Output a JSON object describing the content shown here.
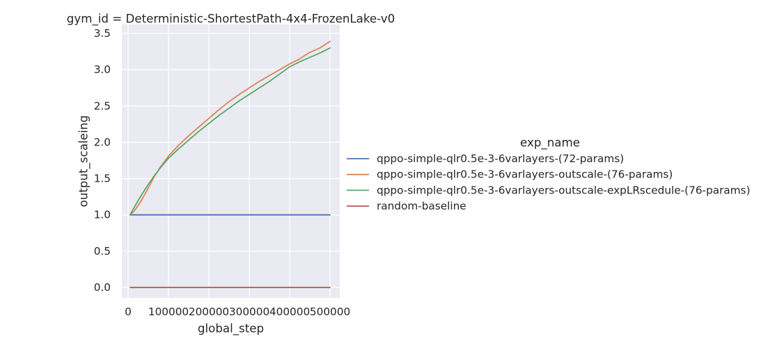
{
  "chart_data": {
    "type": "line",
    "title": "gym_id = Deterministic-ShortestPath-4x4-FrozenLake-v0",
    "xlabel": "global_step",
    "ylabel": "output_scaleing",
    "xlim": [
      -15500,
      524000
    ],
    "ylim": [
      -0.144,
      3.625
    ],
    "xticks": [
      0,
      100000,
      200000,
      300000,
      400000,
      500000
    ],
    "xtick_labels": [
      "0",
      "100000",
      "200000",
      "300000",
      "400000",
      "500000"
    ],
    "yticks": [
      0,
      0.5,
      1,
      1.5,
      2,
      2.5,
      3,
      3.5
    ],
    "ytick_labels": [
      "0.0",
      "0.5",
      "1.0",
      "1.5",
      "2.0",
      "2.5",
      "3.0",
      "3.5"
    ],
    "grid": true,
    "background_color": "#EAEAF2",
    "legend": {
      "title": "exp_name",
      "placement": "right"
    },
    "x": [
      5000,
      15000,
      25000,
      35000,
      50000,
      65000,
      80000,
      100000,
      125000,
      150000,
      175000,
      200000,
      225000,
      250000,
      275000,
      300000,
      325000,
      350000,
      375000,
      400000,
      425000,
      450000,
      475000,
      500000
    ],
    "series": [
      {
        "name": "qppo-simple-qlr0.5e-3-6varlayers-(72-params)",
        "color": "#4C72B0",
        "values": [
          1.0,
          1.0,
          1.0,
          1.0,
          1.0,
          1.0,
          1.0,
          1.0,
          1.0,
          1.0,
          1.0,
          1.0,
          1.0,
          1.0,
          1.0,
          1.0,
          1.0,
          1.0,
          1.0,
          1.0,
          1.0,
          1.0,
          1.0,
          1.0
        ]
      },
      {
        "name": "qppo-simple-qlr0.5e-3-6varlayers-outscale-(76-params)",
        "color": "#DD8452",
        "values": [
          1.0,
          1.05,
          1.13,
          1.22,
          1.37,
          1.53,
          1.66,
          1.81,
          1.96,
          2.09,
          2.21,
          2.33,
          2.45,
          2.56,
          2.66,
          2.75,
          2.84,
          2.92,
          3.0,
          3.08,
          3.15,
          3.24,
          3.3,
          3.39
        ]
      },
      {
        "name": "qppo-simple-qlr0.5e-3-6varlayers-outscale-expLRscedule-(76-params)",
        "color": "#55A868",
        "values": [
          1.0,
          1.1,
          1.2,
          1.29,
          1.42,
          1.54,
          1.65,
          1.78,
          1.91,
          2.03,
          2.15,
          2.26,
          2.37,
          2.47,
          2.57,
          2.66,
          2.75,
          2.84,
          2.94,
          3.04,
          3.11,
          3.17,
          3.23,
          3.3
        ]
      },
      {
        "name": "random-baseline",
        "color": "#C44E52",
        "values": [
          0.0,
          0.0,
          0.0,
          0.0,
          0.0,
          0.0,
          0.0,
          0.0,
          0.0,
          0.0,
          0.0,
          0.0,
          0.0,
          0.0,
          0.0,
          0.0,
          0.0,
          0.0,
          0.0,
          0.0,
          0.0,
          0.0,
          0.0,
          0.0
        ]
      }
    ]
  }
}
